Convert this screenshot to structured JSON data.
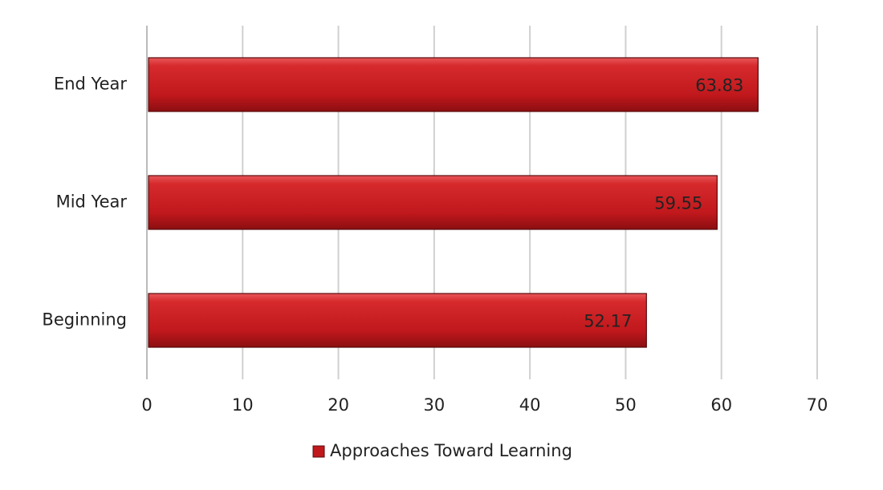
{
  "chart_data": {
    "type": "hbar",
    "categories": [
      "Beginning",
      "Mid Year",
      "End Year"
    ],
    "series": [
      {
        "name": "Approaches Toward Learning",
        "color": "#c0181c",
        "values": [
          52.17,
          59.55,
          63.83
        ]
      }
    ],
    "xlim": [
      0,
      70
    ],
    "xticks": [
      0,
      10,
      20,
      30,
      40,
      50,
      60,
      70
    ],
    "grid": true,
    "legend": "bottom"
  }
}
